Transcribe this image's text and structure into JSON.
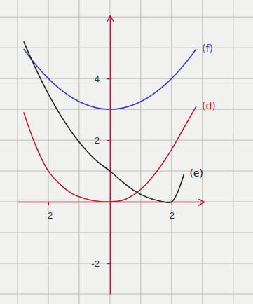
{
  "chart_data": {
    "type": "line",
    "x": [
      -2.8,
      -2.4,
      -2.0,
      -1.6,
      -1.2,
      -0.8,
      -0.4,
      0.0,
      0.4,
      0.8,
      1.2,
      1.6,
      2.0,
      2.4,
      2.8
    ],
    "series": [
      {
        "name": "(f)",
        "color": "#3b3fc4",
        "values": [
          4.96,
          4.44,
          4.0,
          3.64,
          3.36,
          3.16,
          3.04,
          3.0,
          3.04,
          3.16,
          3.36,
          3.64,
          4.0,
          4.44,
          4.96
        ]
      },
      {
        "name": "(d)",
        "color": "#c21f2e",
        "values": [
          2.9,
          1.8,
          1.0,
          0.55,
          0.25,
          0.1,
          0.02,
          0.0,
          0.05,
          0.25,
          0.6,
          1.1,
          1.7,
          2.4,
          3.1
        ]
      },
      {
        "name": "(e)",
        "color": "#222222",
        "values": [
          5.2,
          4.3,
          3.5,
          2.8,
          2.2,
          1.7,
          1.3,
          1.0,
          0.65,
          0.35,
          0.15,
          0.03,
          0.0,
          0.9,
          null
        ]
      }
    ],
    "xlim": [
      -3,
      3.05
    ],
    "ylim": [
      -3,
      6.05
    ],
    "xticks": [
      -2,
      2
    ],
    "yticks": [
      -2,
      2,
      4
    ]
  }
}
